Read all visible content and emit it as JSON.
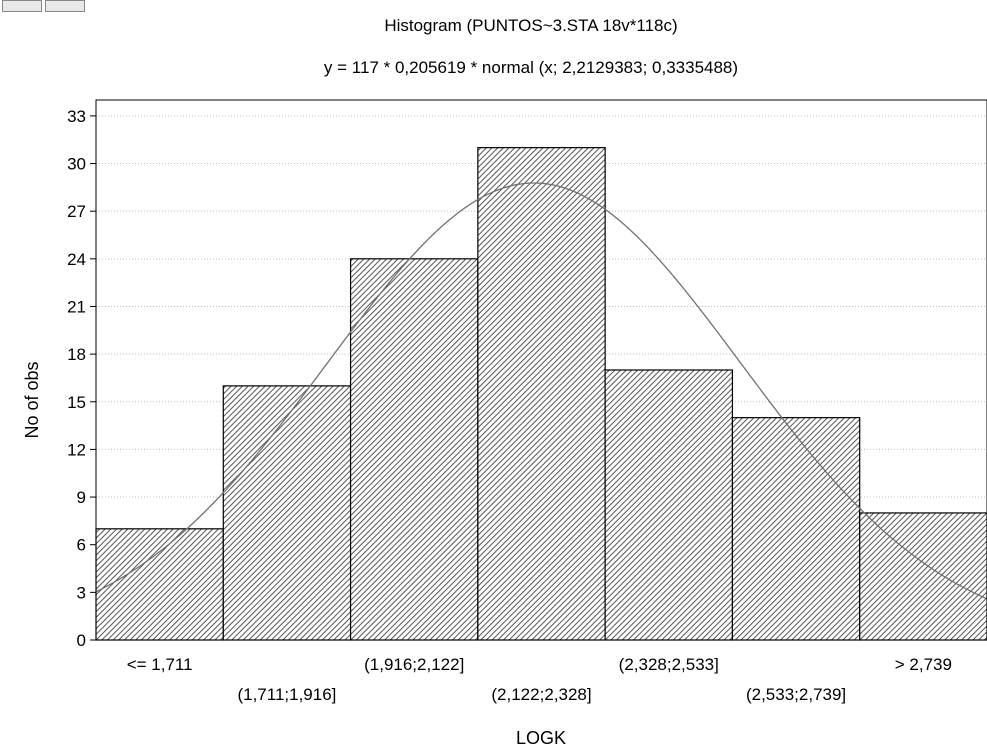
{
  "chart_data": {
    "type": "bar",
    "title": "Histogram (PUNTOS~3.STA 18v*118c)",
    "subtitle": "y = 117 * 0,205619 * normal (x; 2,2129383; 0,3335488)",
    "xlabel": "LOGK",
    "ylabel": "No of obs",
    "categories": [
      "<= 1,711",
      "(1,711;1,916]",
      "(1,916;2,122]",
      "(2,122;2,328]",
      "(2,328;2,533]",
      "(2,533;2,739]",
      "> 2,739"
    ],
    "values": [
      7,
      16,
      24,
      31,
      17,
      14,
      8
    ],
    "ylim": [
      0,
      34
    ],
    "yticks": [
      "0",
      "3",
      "6",
      "9",
      "12",
      "15",
      "18",
      "21",
      "24",
      "27",
      "30",
      "33"
    ],
    "grid": true,
    "fit_curve": {
      "type": "normal",
      "n": 117,
      "bin_width": 0.205619,
      "mean": 2.2129383,
      "sd": 0.3335488
    }
  },
  "toolbar": {
    "button1": "",
    "button2": ""
  }
}
